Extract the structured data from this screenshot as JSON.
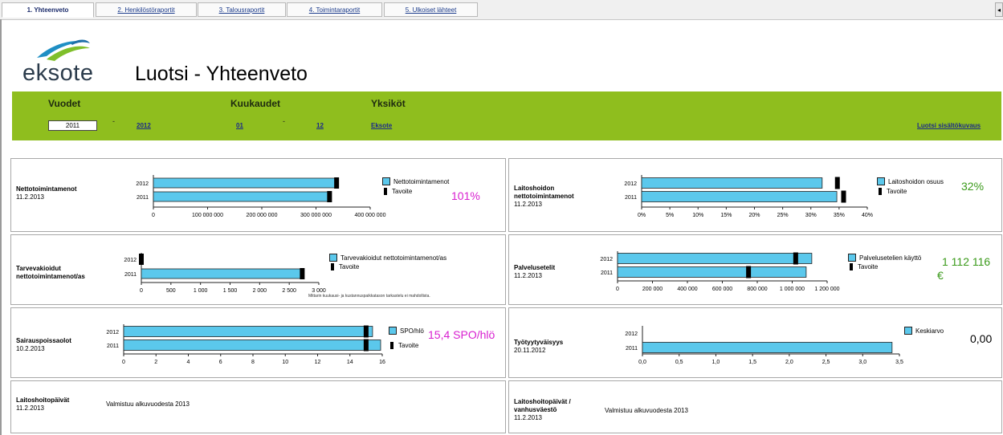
{
  "tabs": [
    {
      "label": "1. Yhteenveto",
      "active": true
    },
    {
      "label": "2. Henkilöstöraportit",
      "active": false
    },
    {
      "label": "3. Talousraportit",
      "active": false
    },
    {
      "label": "4. Toimintaraportit",
      "active": false
    },
    {
      "label": "5. Ulkoiset lähteet",
      "active": false
    }
  ],
  "scroll_icon": "scroll-left-arrow",
  "logo": {
    "text": "eksote",
    "icon": "eksote-swoosh-logo",
    "colors": [
      "#1f8fc4",
      "#7fbf2a",
      "#1e6fa8"
    ]
  },
  "header": {
    "title": "Luotsi - Yhteenveto"
  },
  "filters": {
    "years_label": "Vuodet",
    "months_label": "Kuukaudet",
    "units_label": "Yksiköt",
    "year_from": "2011",
    "year_sep": "-",
    "year_to": "2012",
    "month_from": "01",
    "month_sep": "-",
    "month_to": "12",
    "unit": "Eksote",
    "description_link": "Luotsi sisältökuvaus",
    "bar_color": "#8fbe1e"
  },
  "colors": {
    "bar": "#5bc8ec",
    "target": "#000000",
    "kpi_pink": "#d81fd0",
    "kpi_green": "#3a9a1a"
  },
  "panels": {
    "netto": {
      "title": "Nettotoimintamenot",
      "date": "11.2.2013",
      "legend_bar": "Nettotoimintamenot",
      "legend_target": "Tavoite",
      "kpi": "101%",
      "chart_data": {
        "type": "bar",
        "orientation": "horizontal",
        "categories": [
          "2012",
          "2011"
        ],
        "series": [
          {
            "name": "Nettotoimintamenot",
            "values": [
              340000000,
              325000000
            ]
          },
          {
            "name": "Tavoite",
            "values": [
              338000000,
              325000000
            ]
          }
        ],
        "xlim": [
          0,
          400000000
        ],
        "ticks": [
          "0",
          "100 000 000",
          "200 000 000",
          "300 000 000",
          "400 000 000"
        ]
      }
    },
    "laitos": {
      "title": "Laitoshoidon nettotoimintamenot",
      "title_lines": [
        "Laitoshoidon",
        "nettotoimintamenot"
      ],
      "date": "11.2.2013",
      "legend_bar": "Laitoshoidon osuus",
      "legend_target": "Tavoite",
      "kpi": "32%",
      "chart_data": {
        "type": "bar",
        "orientation": "horizontal",
        "categories": [
          "2012",
          "2011"
        ],
        "series": [
          {
            "name": "Laitoshoidon osuus",
            "values": [
              32,
              34.6
            ]
          },
          {
            "name": "Tavoite",
            "values": [
              34.7,
              35.8
            ]
          }
        ],
        "xlim": [
          0,
          40
        ],
        "ticks": [
          "0%",
          "5%",
          "10%",
          "15%",
          "20%",
          "25%",
          "30%",
          "35%",
          "40%"
        ]
      }
    },
    "tarve": {
      "title": "Tarvevakioidut nettotoimintamenot/as",
      "title_lines": [
        "Tarvevakioidut",
        "nettotoimintamenot/as"
      ],
      "legend_bar": "Tarvevakioidut nettotoimintamenot/as",
      "legend_target": "Tavoite",
      "note": "Mittarin kuukausi- ja kustannuspaikkatason tarkastelu ei mahdollista.",
      "chart_data": {
        "type": "bar",
        "orientation": "horizontal",
        "categories": [
          "2012",
          "2011"
        ],
        "series": [
          {
            "name": "Tarvevakioidut nettotoimintamenot/as",
            "values": [
              0,
              2700
            ]
          },
          {
            "name": "Tavoite",
            "values": [
              0,
              2720
            ]
          }
        ],
        "xlim": [
          0,
          3000
        ],
        "ticks": [
          "0",
          "500",
          "1 000",
          "1 500",
          "2 000",
          "2 500",
          "3 000"
        ]
      }
    },
    "palvelu": {
      "title": "Palvelusetelit",
      "date": "11.2.2013",
      "legend_bar": "Palvelusetelien käyttö",
      "legend_target": "Tavoite",
      "kpi_lines": [
        "1 112 116",
        "€"
      ],
      "chart_data": {
        "type": "bar",
        "orientation": "horizontal",
        "categories": [
          "2012",
          "2011"
        ],
        "series": [
          {
            "name": "Palvelusetelien käyttö",
            "values": [
              1112116,
              1080000
            ]
          },
          {
            "name": "Tavoite",
            "values": [
              1020000,
              750000
            ]
          }
        ],
        "xlim": [
          0,
          1200000
        ],
        "ticks": [
          "0",
          "200 000",
          "400 000",
          "600 000",
          "800 000",
          "1 000 000",
          "1 200 000"
        ]
      }
    },
    "sairaus": {
      "title": "Sairauspoissaolot",
      "date": "10.2.2013",
      "legend_bar": "SPO/hlö",
      "legend_target": "Tavoite",
      "kpi": "15,4 SPO/hlö",
      "chart_data": {
        "type": "bar",
        "orientation": "horizontal",
        "categories": [
          "2012",
          "2011"
        ],
        "series": [
          {
            "name": "SPO/hlö",
            "values": [
              15.4,
              15.9
            ]
          },
          {
            "name": "Tavoite",
            "values": [
              15,
              15
            ]
          }
        ],
        "xlim": [
          0,
          16
        ],
        "ticks": [
          "0",
          "2",
          "4",
          "6",
          "8",
          "10",
          "12",
          "14",
          "16"
        ]
      }
    },
    "tyoty": {
      "title": "Työtyytyväisyys",
      "date": "20.11.2012",
      "legend_bar": "Keskiarvo",
      "kpi": "0,00",
      "chart_data": {
        "type": "bar",
        "orientation": "horizontal",
        "categories": [
          "2012",
          "2011"
        ],
        "series": [
          {
            "name": "Keskiarvo",
            "values": [
              0,
              3.4
            ]
          }
        ],
        "xlim": [
          0,
          3.5
        ],
        "ticks": [
          "0,0",
          "0,5",
          "1,0",
          "1,5",
          "2,0",
          "2,5",
          "3,0",
          "3,5"
        ]
      }
    },
    "hoitopaivat": {
      "title": "Laitoshoitopäivät",
      "date": "11.2.2013",
      "text": "Valmistuu alkuvuodesta 2013"
    },
    "hoitopaivat_vanhus": {
      "title": "Laitoshoitopäivät / vanhusväestö",
      "title_lines": [
        "Laitoshoitopäivät /",
        "vanhusväestö"
      ],
      "date": "11.2.2013",
      "text": "Valmistuu alkuvuodesta 2013"
    }
  }
}
